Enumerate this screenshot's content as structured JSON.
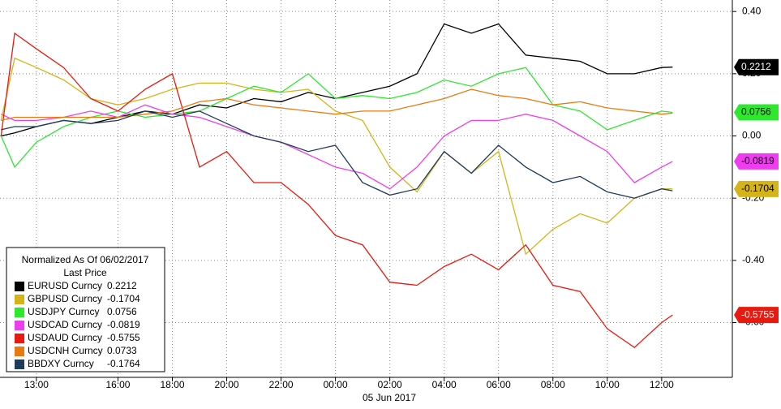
{
  "chart_data": {
    "type": "line",
    "x": [
      11.7,
      12.2,
      13,
      14,
      15,
      16,
      17,
      18,
      19,
      20,
      21,
      22,
      23,
      24,
      25,
      26,
      27,
      28,
      29,
      30,
      31,
      32,
      33,
      34,
      35,
      36,
      36.4
    ],
    "xlim": [
      11.66,
      38.6
    ],
    "xticks": [
      {
        "value": 13,
        "label": "13:00"
      },
      {
        "value": 16,
        "label": "16:00"
      },
      {
        "value": 18,
        "label": "18:00"
      },
      {
        "value": 20,
        "label": "20:00"
      },
      {
        "value": 22,
        "label": "22:00"
      },
      {
        "value": 24,
        "label": "00:00"
      },
      {
        "value": 26,
        "label": "02:00"
      },
      {
        "value": 28,
        "label": "04:00"
      },
      {
        "value": 30,
        "label": "06:00"
      },
      {
        "value": 32,
        "label": "08:00"
      },
      {
        "value": 34,
        "label": "10:00"
      },
      {
        "value": 36,
        "label": "12:00"
      }
    ],
    "x_label": "05 Jun 2017",
    "ylim": [
      -0.776,
      0.437
    ],
    "yticks": [
      {
        "value": 0.4,
        "label": "0.40"
      },
      {
        "value": 0.2,
        "label": "0.20"
      },
      {
        "value": 0,
        "label": "0.00"
      },
      {
        "value": -0.2,
        "label": "-0.20"
      },
      {
        "value": -0.4,
        "label": "-0.40"
      },
      {
        "value": -0.6,
        "label": "-0.60"
      }
    ],
    "grid": true,
    "legend": {
      "title": "Normalized As Of 06/02/2017",
      "subtitle": "Last Price",
      "position": "lower left"
    },
    "series": [
      {
        "name": "EURUSD Curncy",
        "color": "#000000",
        "last": 0.2212,
        "box": true,
        "values": [
          0.0,
          0.01,
          0.03,
          0.05,
          0.04,
          0.06,
          0.08,
          0.07,
          0.1,
          0.09,
          0.12,
          0.11,
          0.14,
          0.12,
          0.14,
          0.16,
          0.2,
          0.36,
          0.33,
          0.36,
          0.26,
          0.25,
          0.24,
          0.2,
          0.2,
          0.22,
          0.2212
        ]
      },
      {
        "name": "GBPUSD Curncy",
        "color": "#d4b418",
        "last": -0.1704,
        "box": true,
        "values": [
          0.05,
          0.25,
          0.22,
          0.18,
          0.12,
          0.1,
          0.12,
          0.15,
          0.17,
          0.17,
          0.15,
          0.14,
          0.15,
          0.08,
          0.05,
          -0.1,
          -0.18,
          -0.05,
          -0.12,
          -0.05,
          -0.38,
          -0.3,
          -0.25,
          -0.28,
          -0.2,
          -0.17,
          -0.1704
        ]
      },
      {
        "name": "USDJPY Curncy",
        "color": "#2ee82e",
        "last": 0.0756,
        "box": true,
        "values": [
          0.0,
          -0.1,
          -0.02,
          0.03,
          0.06,
          0.08,
          0.06,
          0.07,
          0.08,
          0.12,
          0.16,
          0.14,
          0.2,
          0.12,
          0.13,
          0.12,
          0.14,
          0.18,
          0.16,
          0.2,
          0.22,
          0.1,
          0.08,
          0.02,
          0.05,
          0.08,
          0.0756
        ]
      },
      {
        "name": "USDCAD Curncy",
        "color": "#f03cf0",
        "last": -0.0819,
        "box": true,
        "values": [
          0.07,
          0.05,
          0.05,
          0.06,
          0.08,
          0.06,
          0.1,
          0.07,
          0.06,
          0.03,
          0.0,
          -0.02,
          -0.06,
          -0.1,
          -0.12,
          -0.17,
          -0.1,
          0.0,
          0.05,
          0.05,
          0.07,
          0.05,
          0.0,
          -0.05,
          -0.15,
          -0.1,
          -0.0819
        ]
      },
      {
        "name": "USDAUD Curncy",
        "color": "#e8190e",
        "last": -0.5755,
        "box": true,
        "values": [
          0.0,
          0.33,
          0.28,
          0.22,
          0.12,
          0.08,
          0.15,
          0.2,
          -0.1,
          -0.05,
          -0.15,
          -0.15,
          -0.22,
          -0.32,
          -0.35,
          -0.47,
          -0.48,
          -0.42,
          -0.38,
          -0.43,
          -0.35,
          -0.48,
          -0.5,
          -0.62,
          -0.68,
          -0.6,
          -0.5755
        ]
      },
      {
        "name": "USDCNH Curncy",
        "color": "#e87a10",
        "last": 0.0733,
        "box": false,
        "values": [
          0.05,
          0.06,
          0.06,
          0.06,
          0.06,
          0.06,
          0.07,
          0.08,
          0.11,
          0.12,
          0.1,
          0.09,
          0.08,
          0.07,
          0.08,
          0.08,
          0.1,
          0.12,
          0.15,
          0.13,
          0.12,
          0.1,
          0.11,
          0.09,
          0.08,
          0.07,
          0.0733
        ]
      },
      {
        "name": "BBDXY Curncy",
        "color": "#1f3b5c",
        "last": -0.1764,
        "box": false,
        "values": [
          0.02,
          0.03,
          0.03,
          0.05,
          0.04,
          0.05,
          0.08,
          0.06,
          0.08,
          0.04,
          0.0,
          -0.02,
          -0.05,
          -0.03,
          -0.15,
          -0.19,
          -0.17,
          -0.05,
          -0.12,
          -0.03,
          -0.1,
          -0.15,
          -0.13,
          -0.18,
          -0.2,
          -0.17,
          -0.1764
        ]
      }
    ]
  }
}
